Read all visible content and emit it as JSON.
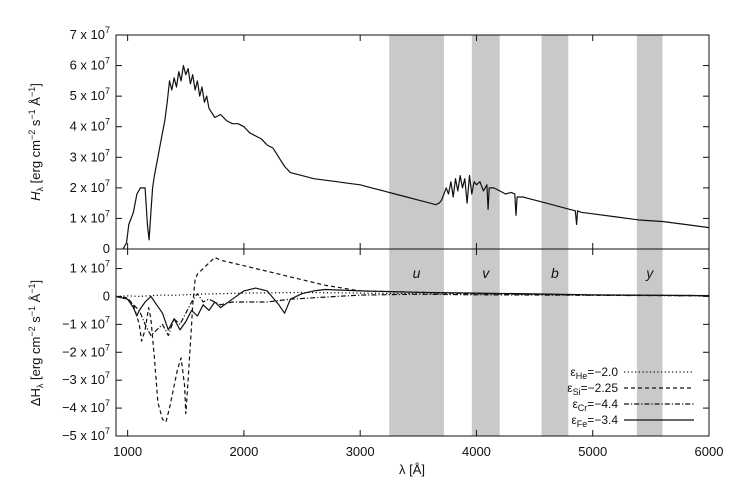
{
  "chart_data": [
    {
      "type": "line",
      "panel": "top",
      "xlim": [
        900,
        6000
      ],
      "ylim": [
        0,
        70000000
      ],
      "ylabel_main": "H",
      "ylabel_sub": "λ",
      "ylabel_units": "[erg cm",
      "ylabel_exp1": "−2",
      "ylabel_mid": " s",
      "ylabel_exp2": "−1",
      "ylabel_end": " Å",
      "ylabel_exp3": "−1",
      "ylabel_close": "]",
      "yticks": [
        {
          "value": 0,
          "label": "0",
          "exp": ""
        },
        {
          "value": 10000000,
          "label": "1 x 10",
          "exp": "7"
        },
        {
          "value": 20000000,
          "label": "2 x 10",
          "exp": "7"
        },
        {
          "value": 30000000,
          "label": "3 x 10",
          "exp": "7"
        },
        {
          "value": 40000000,
          "label": "4 x 10",
          "exp": "7"
        },
        {
          "value": 50000000,
          "label": "5 x 10",
          "exp": "7"
        },
        {
          "value": 60000000,
          "label": "6 x 10",
          "exp": "7"
        },
        {
          "value": 70000000,
          "label": "7 x 10",
          "exp": "7"
        }
      ],
      "series": [
        {
          "style": "solid",
          "x": [
            960,
            990,
            1010,
            1050,
            1080,
            1110,
            1150,
            1170,
            1185,
            1200,
            1215,
            1230,
            1260,
            1290,
            1320,
            1340,
            1360,
            1380,
            1400,
            1420,
            1440,
            1460,
            1480,
            1500,
            1520,
            1540,
            1560,
            1580,
            1600,
            1620,
            1640,
            1660,
            1680,
            1700,
            1750,
            1800,
            1850,
            1900,
            1950,
            2000,
            2050,
            2100,
            2150,
            2200,
            2250,
            2300,
            2350,
            2400,
            2500,
            2600,
            2700,
            2800,
            2900,
            3000,
            3100,
            3200,
            3300,
            3400,
            3500,
            3600,
            3650,
            3680,
            3700,
            3720,
            3740,
            3760,
            3780,
            3800,
            3820,
            3840,
            3860,
            3880,
            3900,
            3920,
            3940,
            3960,
            3980,
            4000,
            4030,
            4060,
            4090,
            4100,
            4110,
            4150,
            4200,
            4250,
            4300,
            4330,
            4340,
            4350,
            4400,
            4450,
            4500,
            4550,
            4600,
            4700,
            4800,
            4850,
            4861,
            4870,
            4900,
            5000,
            5200,
            5400,
            5600,
            5800,
            6000
          ],
          "y": [
            0,
            2000000,
            8000000,
            12000000,
            18000000,
            20000000,
            20000000,
            8000000,
            3000000,
            12000000,
            20000000,
            24000000,
            30000000,
            36000000,
            42000000,
            48000000,
            55000000,
            52000000,
            56000000,
            53000000,
            58000000,
            55000000,
            60000000,
            57000000,
            59000000,
            54000000,
            57000000,
            52000000,
            55000000,
            50000000,
            53000000,
            48000000,
            50000000,
            46000000,
            43000000,
            44000000,
            42000000,
            41000000,
            41000000,
            40000000,
            38000000,
            37000000,
            36000000,
            34000000,
            33000000,
            30000000,
            27000000,
            25000000,
            24000000,
            23000000,
            22500000,
            22000000,
            21500000,
            21000000,
            20000000,
            19000000,
            18000000,
            17000000,
            16000000,
            15000000,
            14500000,
            15000000,
            16000000,
            18000000,
            20000000,
            18000000,
            22000000,
            17000000,
            23000000,
            19000000,
            24000000,
            20000000,
            23000000,
            15000000,
            24000000,
            18000000,
            22000000,
            21000000,
            22000000,
            19000000,
            21000000,
            13000000,
            20000000,
            20000000,
            19000000,
            18000000,
            18500000,
            18000000,
            11000000,
            17000000,
            17000000,
            16500000,
            16000000,
            15500000,
            15000000,
            14000000,
            13000000,
            12500000,
            8000000,
            12500000,
            12000000,
            11500000,
            10500000,
            9500000,
            9000000,
            8000000,
            7000000
          ]
        }
      ]
    },
    {
      "type": "line",
      "panel": "bottom",
      "xlim": [
        900,
        6000
      ],
      "ylim": [
        -50000000,
        17000000
      ],
      "xlabel": "λ [Å]",
      "ylabel_main": "ΔH",
      "ylabel_sub": "λ",
      "ylabel_units": "[erg cm",
      "ylabel_exp1": "−2",
      "ylabel_mid": " s",
      "ylabel_exp2": "−1",
      "ylabel_end": " Å",
      "ylabel_exp3": "−1",
      "ylabel_close": "]",
      "xticks": [
        1000,
        2000,
        3000,
        4000,
        5000,
        6000
      ],
      "yticks": [
        {
          "value": 10000000,
          "label": "1 x 10",
          "exp": "7"
        },
        {
          "value": 0,
          "label": "0",
          "exp": ""
        },
        {
          "value": -10000000,
          "label": "−1 x 10",
          "exp": "7"
        },
        {
          "value": -20000000,
          "label": "−2 x 10",
          "exp": "7"
        },
        {
          "value": -30000000,
          "label": "−3 x 10",
          "exp": "7"
        },
        {
          "value": -40000000,
          "label": "−4 x 10",
          "exp": "7"
        },
        {
          "value": -50000000,
          "label": "−5 x 10",
          "exp": "7"
        }
      ],
      "series": [
        {
          "name_main": "ε",
          "name_sub": "He",
          "name_value": "=−2.0",
          "style": "dotted",
          "x": [
            900,
            1000,
            1100,
            1200,
            1300,
            1400,
            1500,
            1600,
            1800,
            2000,
            2500,
            3000,
            3500,
            4000,
            4500,
            5000,
            6000
          ],
          "y": [
            0,
            200000,
            0,
            300000,
            500000,
            400000,
            600000,
            800000,
            1000000,
            1200000,
            1400000,
            1200000,
            1000000,
            900000,
            700000,
            500000,
            300000
          ]
        },
        {
          "name_main": "ε",
          "name_sub": "Si",
          "name_value": "=−2.25",
          "style": "dashed",
          "x": [
            900,
            1000,
            1050,
            1100,
            1120,
            1150,
            1180,
            1200,
            1230,
            1260,
            1300,
            1330,
            1360,
            1400,
            1430,
            1460,
            1490,
            1500,
            1520,
            1550,
            1560,
            1580,
            1600,
            1650,
            1700,
            1750,
            1800,
            1900,
            2000,
            2100,
            2200,
            2300,
            2400,
            2500,
            2700,
            3000,
            3500,
            4000,
            4500,
            5000,
            6000
          ],
          "y": [
            0,
            -500000,
            -3000000,
            -10000000,
            -16000000,
            -12000000,
            -4000000,
            -8000000,
            -22000000,
            -38000000,
            -44000000,
            -45000000,
            -40000000,
            -32000000,
            -26000000,
            -22000000,
            -32000000,
            -42000000,
            -30000000,
            -10000000,
            -3000000,
            6000000,
            8000000,
            10000000,
            12000000,
            14000000,
            13000000,
            12000000,
            11000000,
            10000000,
            9000000,
            8000000,
            7000000,
            6000000,
            4000000,
            2000000,
            1500000,
            1000000,
            800000,
            500000,
            300000
          ]
        },
        {
          "name_main": "ε",
          "name_sub": "Cr",
          "name_value": "=−4.4",
          "style": "dashdot",
          "x": [
            900,
            1000,
            1100,
            1150,
            1200,
            1250,
            1300,
            1350,
            1400,
            1450,
            1500,
            1550,
            1600,
            1650,
            1700,
            1800,
            1900,
            2000,
            2200,
            2400,
            2600,
            2800,
            3000,
            3500,
            4000,
            5000,
            6000
          ],
          "y": [
            0,
            -1000000,
            -5000000,
            -10000000,
            -14000000,
            -12000000,
            -10000000,
            -14000000,
            -8000000,
            -10000000,
            -6000000,
            -2000000,
            1000000,
            -2000000,
            -1000000,
            -3000000,
            -2000000,
            -2000000,
            -2000000,
            -1000000,
            -500000,
            0,
            500000,
            800000,
            600000,
            400000,
            200000
          ]
        },
        {
          "name_main": "ε",
          "name_sub": "Fe",
          "name_value": "=−3.4",
          "style": "solid",
          "x": [
            900,
            1000,
            1050,
            1080,
            1100,
            1150,
            1200,
            1250,
            1300,
            1350,
            1400,
            1450,
            1500,
            1550,
            1600,
            1650,
            1700,
            1750,
            1800,
            1900,
            2000,
            2100,
            2200,
            2300,
            2350,
            2400,
            2500,
            2600,
            2700,
            3000,
            3500,
            4000,
            4500,
            5000,
            6000
          ],
          "y": [
            0,
            -1000000,
            -4000000,
            -7000000,
            -5000000,
            -2000000,
            0,
            -3000000,
            -6000000,
            -12000000,
            -8000000,
            -12000000,
            -9000000,
            -5000000,
            -7000000,
            -3000000,
            -5000000,
            -2000000,
            -4000000,
            -1000000,
            2000000,
            3000000,
            2000000,
            -3000000,
            -6000000,
            -1000000,
            1000000,
            2000000,
            2500000,
            2000000,
            1500000,
            1200000,
            900000,
            600000,
            300000
          ]
        }
      ]
    }
  ],
  "bands": [
    {
      "label": "u",
      "x0": 3250,
      "x1": 3720
    },
    {
      "label": "v",
      "x0": 3960,
      "x1": 4200
    },
    {
      "label": "b",
      "x0": 4560,
      "x1": 4790
    },
    {
      "label": "y",
      "x0": 5380,
      "x1": 5600
    }
  ],
  "colors": {
    "line": "#111111",
    "band": "#c9c9c9"
  }
}
